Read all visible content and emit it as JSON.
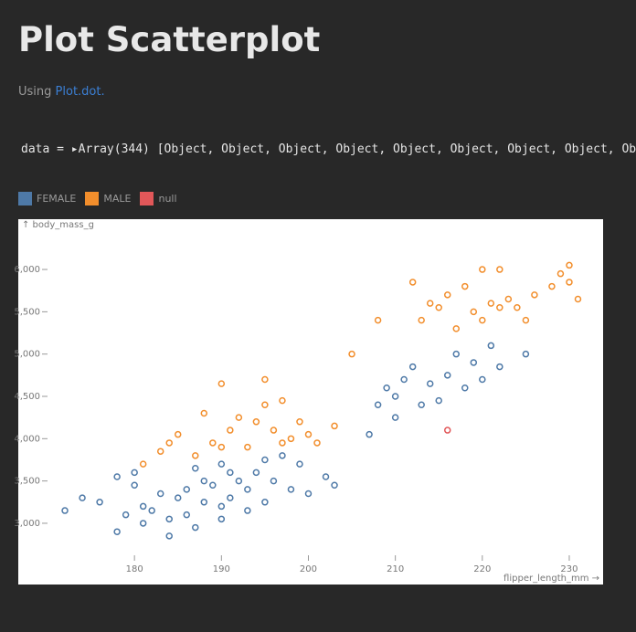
{
  "page": {
    "title": "Plot Scatterplot",
    "intro": "Using",
    "link": "Plot.dot.",
    "code": "data = ▸Array(344) [Object, Object, Object, Object, Object, Object, Object, Object, Ob"
  },
  "chart_data": {
    "type": "scatter",
    "ylabel": "↑ body_mass_g",
    "xlabel": "flipper_length_mm →",
    "xlim": [
      170,
      232
    ],
    "xticks": [
      180,
      190,
      200,
      210,
      220,
      230
    ],
    "ylim": [
      2600,
      6400
    ],
    "yticks": [
      {
        "value": 3000,
        "label": "3,000"
      },
      {
        "value": 3500,
        "label": "3,500"
      },
      {
        "value": 4000,
        "label": "4,000"
      },
      {
        "value": 4500,
        "label": "4,500"
      },
      {
        "value": 5000,
        "label": "5,000"
      },
      {
        "value": 5500,
        "label": "5,500"
      },
      {
        "value": 6000,
        "label": "6,000"
      }
    ],
    "series": [
      {
        "name": "FEMALE",
        "color": "#4e79a7",
        "x": [
          172,
          174,
          176,
          178,
          178,
          179,
          180,
          180,
          181,
          181,
          182,
          183,
          184,
          184,
          185,
          186,
          186,
          187,
          187,
          188,
          188,
          189,
          190,
          190,
          190,
          191,
          191,
          192,
          193,
          193,
          194,
          195,
          195,
          196,
          197,
          198,
          199,
          200,
          202,
          203,
          207,
          208,
          209,
          210,
          210,
          211,
          212,
          213,
          214,
          215,
          216,
          217,
          218,
          219,
          220,
          221,
          222,
          225
        ],
        "values": [
          3150,
          3300,
          3250,
          2900,
          3550,
          3100,
          3450,
          3600,
          3000,
          3200,
          3150,
          3350,
          2850,
          3050,
          3300,
          3400,
          3100,
          3650,
          2950,
          3250,
          3500,
          3450,
          3200,
          3700,
          3050,
          3300,
          3600,
          3500,
          3400,
          3150,
          3600,
          3250,
          3750,
          3500,
          3800,
          3400,
          3700,
          3350,
          3550,
          3450,
          4050,
          4400,
          4600,
          4500,
          4250,
          4700,
          4850,
          4400,
          4650,
          4450,
          4750,
          5000,
          4600,
          4900,
          4700,
          5100,
          4850,
          5000
        ]
      },
      {
        "name": "MALE",
        "color": "#f28e2c",
        "x": [
          181,
          183,
          184,
          185,
          187,
          188,
          189,
          190,
          190,
          191,
          192,
          193,
          194,
          195,
          195,
          196,
          197,
          197,
          198,
          199,
          200,
          201,
          203,
          205,
          208,
          212,
          213,
          214,
          215,
          216,
          217,
          218,
          219,
          220,
          220,
          221,
          222,
          222,
          223,
          224,
          225,
          226,
          228,
          229,
          230,
          230,
          231
        ],
        "values": [
          3700,
          3850,
          3950,
          4050,
          3800,
          4300,
          3950,
          4650,
          3900,
          4100,
          4250,
          3900,
          4200,
          4400,
          4700,
          4100,
          4450,
          3950,
          4000,
          4200,
          4050,
          3950,
          4150,
          5000,
          5400,
          5850,
          5400,
          5600,
          5550,
          5700,
          5300,
          5800,
          5500,
          5400,
          6000,
          5600,
          5550,
          6000,
          5650,
          5550,
          5400,
          5700,
          5800,
          5950,
          6050,
          5850,
          5650
        ]
      },
      {
        "name": "null",
        "color": "#e15759",
        "x": [
          216
        ],
        "values": [
          4100
        ]
      }
    ]
  }
}
